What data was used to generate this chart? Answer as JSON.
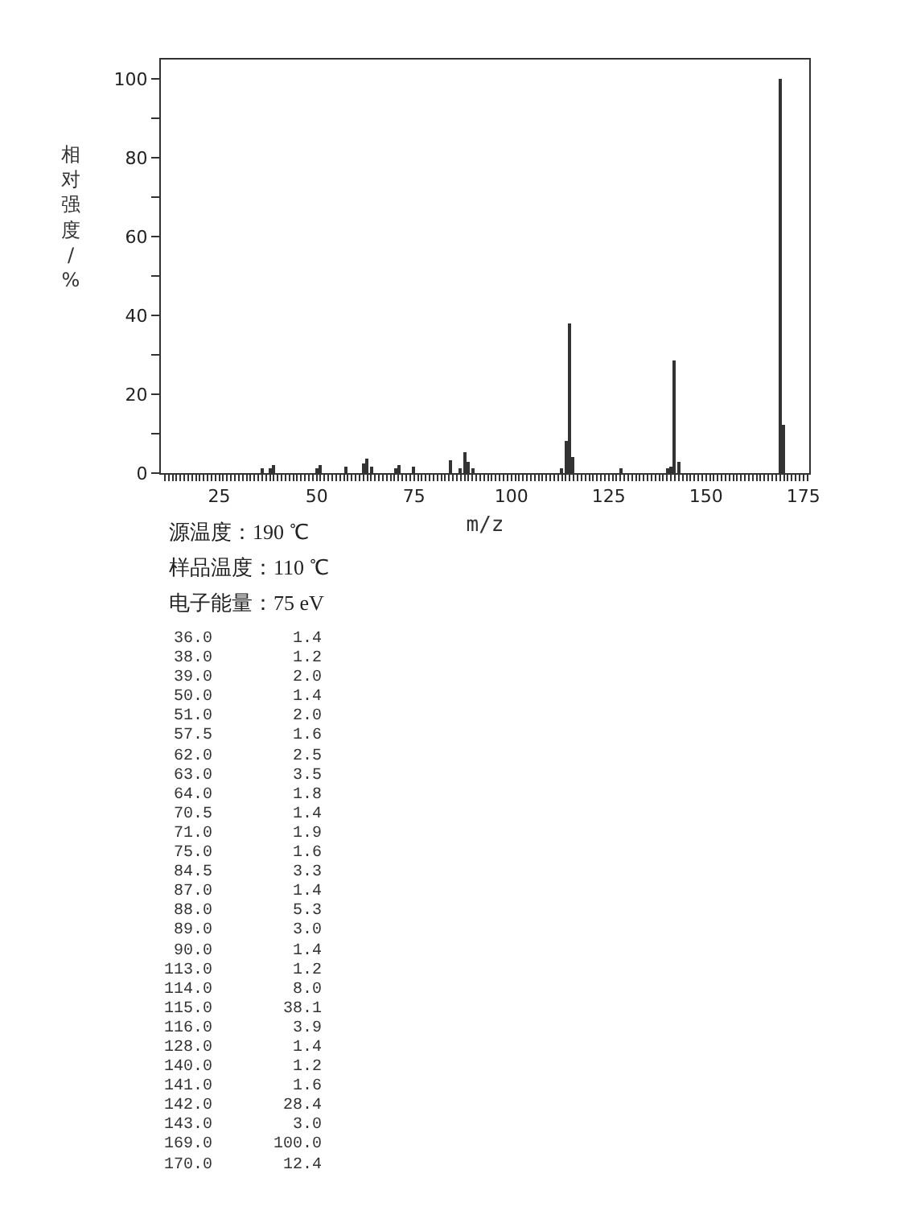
{
  "chart_data": [
    {
      "type": "bar",
      "xlabel": "m/z",
      "ylabel": "相对强度/%",
      "annotations": [
        "源温度：190 ℃",
        "样品温度：110 ℃",
        "电子能量：75 eV"
      ],
      "x": [
        36,
        38,
        39,
        50,
        51,
        57.5,
        62,
        63,
        64,
        70.5,
        71,
        75,
        84.5,
        87,
        88,
        89,
        90,
        113,
        114,
        115,
        116,
        128,
        140,
        141,
        142,
        143,
        169,
        170
      ],
      "series": [
        {
          "color": "#333333",
          "values": [
            1.4,
            1.2,
            2.0,
            1.4,
            2.0,
            1.6,
            2.5,
            3.5,
            1.8,
            1.4,
            1.9,
            1.6,
            3.3,
            1.4,
            5.3,
            3.0,
            1.4,
            1.2,
            8.0,
            38.1,
            3.9,
            1.4,
            1.2,
            1.6,
            28.4,
            3.0,
            100.0,
            12.4
          ]
        }
      ],
      "xlim": [
        10,
        176.5
      ],
      "ylim": [
        0,
        105
      ],
      "xticks": [
        {
          "value": 11,
          "label": null
        },
        {
          "value": 12,
          "label": null
        },
        {
          "value": 13,
          "label": null
        },
        {
          "value": 14,
          "label": null
        },
        {
          "value": 15,
          "label": null
        },
        {
          "value": 16,
          "label": null
        },
        {
          "value": 17,
          "label": null
        },
        {
          "value": 18,
          "label": null
        },
        {
          "value": 19,
          "label": null
        },
        {
          "value": 20,
          "label": null
        },
        {
          "value": 21,
          "label": null
        },
        {
          "value": 22,
          "label": null
        },
        {
          "value": 23,
          "label": null
        },
        {
          "value": 24,
          "label": null
        },
        25,
        {
          "value": 26,
          "label": null
        },
        {
          "value": 27,
          "label": null
        },
        {
          "value": 28,
          "label": null
        },
        {
          "value": 29,
          "label": null
        },
        {
          "value": 30,
          "label": null
        },
        {
          "value": 31,
          "label": null
        },
        {
          "value": 32,
          "label": null
        },
        {
          "value": 33,
          "label": null
        },
        {
          "value": 34,
          "label": null
        },
        {
          "value": 35,
          "label": null
        },
        {
          "value": 36,
          "label": null
        },
        {
          "value": 37,
          "label": null
        },
        {
          "value": 38,
          "label": null
        },
        {
          "value": 39,
          "label": null
        },
        {
          "value": 40,
          "label": null
        },
        {
          "value": 41,
          "label": null
        },
        {
          "value": 42,
          "label": null
        },
        {
          "value": 43,
          "label": null
        },
        {
          "value": 44,
          "label": null
        },
        {
          "value": 45,
          "label": null
        },
        {
          "value": 46,
          "label": null
        },
        {
          "value": 47,
          "label": null
        },
        {
          "value": 48,
          "label": null
        },
        {
          "value": 49,
          "label": null
        },
        50,
        {
          "value": 51,
          "label": null
        },
        {
          "value": 52,
          "label": null
        },
        {
          "value": 53,
          "label": null
        },
        {
          "value": 54,
          "label": null
        },
        {
          "value": 55,
          "label": null
        },
        {
          "value": 56,
          "label": null
        },
        {
          "value": 57,
          "label": null
        },
        {
          "value": 58,
          "label": null
        },
        {
          "value": 59,
          "label": null
        },
        {
          "value": 60,
          "label": null
        },
        {
          "value": 61,
          "label": null
        },
        {
          "value": 62,
          "label": null
        },
        {
          "value": 63,
          "label": null
        },
        {
          "value": 64,
          "label": null
        },
        {
          "value": 65,
          "label": null
        },
        {
          "value": 66,
          "label": null
        },
        {
          "value": 67,
          "label": null
        },
        {
          "value": 68,
          "label": null
        },
        {
          "value": 69,
          "label": null
        },
        {
          "value": 70,
          "label": null
        },
        {
          "value": 71,
          "label": null
        },
        {
          "value": 72,
          "label": null
        },
        {
          "value": 73,
          "label": null
        },
        {
          "value": 74,
          "label": null
        },
        75,
        {
          "value": 76,
          "label": null
        },
        {
          "value": 77,
          "label": null
        },
        {
          "value": 78,
          "label": null
        },
        {
          "value": 79,
          "label": null
        },
        {
          "value": 80,
          "label": null
        },
        {
          "value": 81,
          "label": null
        },
        {
          "value": 82,
          "label": null
        },
        {
          "value": 83,
          "label": null
        },
        {
          "value": 84,
          "label": null
        },
        {
          "value": 85,
          "label": null
        },
        {
          "value": 86,
          "label": null
        },
        {
          "value": 87,
          "label": null
        },
        {
          "value": 88,
          "label": null
        },
        {
          "value": 89,
          "label": null
        },
        {
          "value": 90,
          "label": null
        },
        {
          "value": 91,
          "label": null
        },
        {
          "value": 92,
          "label": null
        },
        {
          "value": 93,
          "label": null
        },
        {
          "value": 94,
          "label": null
        },
        {
          "value": 95,
          "label": null
        },
        {
          "value": 96,
          "label": null
        },
        {
          "value": 97,
          "label": null
        },
        {
          "value": 98,
          "label": null
        },
        {
          "value": 99,
          "label": null
        },
        100,
        {
          "value": 101,
          "label": null
        },
        {
          "value": 102,
          "label": null
        },
        {
          "value": 103,
          "label": null
        },
        {
          "value": 104,
          "label": null
        },
        {
          "value": 105,
          "label": null
        },
        {
          "value": 106,
          "label": null
        },
        {
          "value": 107,
          "label": null
        },
        {
          "value": 108,
          "label": null
        },
        {
          "value": 109,
          "label": null
        },
        {
          "value": 110,
          "label": null
        },
        {
          "value": 111,
          "label": null
        },
        {
          "value": 112,
          "label": null
        },
        {
          "value": 113,
          "label": null
        },
        {
          "value": 114,
          "label": null
        },
        {
          "value": 115,
          "label": null
        },
        {
          "value": 116,
          "label": null
        },
        {
          "value": 117,
          "label": null
        },
        {
          "value": 118,
          "label": null
        },
        {
          "value": 119,
          "label": null
        },
        {
          "value": 120,
          "label": null
        },
        {
          "value": 121,
          "label": null
        },
        {
          "value": 122,
          "label": null
        },
        {
          "value": 123,
          "label": null
        },
        {
          "value": 124,
          "label": null
        },
        125,
        {
          "value": 126,
          "label": null
        },
        {
          "value": 127,
          "label": null
        },
        {
          "value": 128,
          "label": null
        },
        {
          "value": 129,
          "label": null
        },
        {
          "value": 130,
          "label": null
        },
        {
          "value": 131,
          "label": null
        },
        {
          "value": 132,
          "label": null
        },
        {
          "value": 133,
          "label": null
        },
        {
          "value": 134,
          "label": null
        },
        {
          "value": 135,
          "label": null
        },
        {
          "value": 136,
          "label": null
        },
        {
          "value": 137,
          "label": null
        },
        {
          "value": 138,
          "label": null
        },
        {
          "value": 139,
          "label": null
        },
        {
          "value": 140,
          "label": null
        },
        {
          "value": 141,
          "label": null
        },
        {
          "value": 142,
          "label": null
        },
        {
          "value": 143,
          "label": null
        },
        {
          "value": 144,
          "label": null
        },
        {
          "value": 145,
          "label": null
        },
        {
          "value": 146,
          "label": null
        },
        {
          "value": 147,
          "label": null
        },
        {
          "value": 148,
          "label": null
        },
        {
          "value": 149,
          "label": null
        },
        150,
        {
          "value": 151,
          "label": null
        },
        {
          "value": 152,
          "label": null
        },
        {
          "value": 153,
          "label": null
        },
        {
          "value": 154,
          "label": null
        },
        {
          "value": 155,
          "label": null
        },
        {
          "value": 156,
          "label": null
        },
        {
          "value": 157,
          "label": null
        },
        {
          "value": 158,
          "label": null
        },
        {
          "value": 159,
          "label": null
        },
        {
          "value": 160,
          "label": null
        },
        {
          "value": 161,
          "label": null
        },
        {
          "value": 162,
          "label": null
        },
        {
          "value": 163,
          "label": null
        },
        {
          "value": 164,
          "label": null
        },
        {
          "value": 165,
          "label": null
        },
        {
          "value": 166,
          "label": null
        },
        {
          "value": 167,
          "label": null
        },
        {
          "value": 168,
          "label": null
        },
        {
          "value": 169,
          "label": null
        },
        {
          "value": 170,
          "label": null
        },
        {
          "value": 171,
          "label": null
        },
        {
          "value": 172,
          "label": null
        },
        {
          "value": 173,
          "label": null
        },
        {
          "value": 174,
          "label": null
        },
        175,
        {
          "value": 176,
          "label": null
        }
      ],
      "yticks": [
        0,
        {
          "value": 10,
          "label": null
        },
        20,
        {
          "value": 30,
          "label": null
        },
        40,
        {
          "value": 50,
          "label": null
        },
        60,
        {
          "value": 70,
          "label": null
        },
        80,
        {
          "value": 90,
          "label": null
        },
        100
      ]
    },
    {
      "type": "other",
      "annotations": [
        "36.0",
        "1.4",
        "38.0",
        "1.2",
        "39.0",
        "2.0",
        "50.0",
        "1.4",
        "51.0",
        "2.0",
        "57.5",
        "1.6",
        "62.0",
        "2.5",
        "63.0",
        "3.5",
        "64.0",
        "1.8",
        "70.5",
        "1.4",
        "71.0",
        "1.9",
        "75.0",
        "1.6",
        "84.5",
        "3.3",
        "87.0",
        "1.4",
        "88.0",
        "5.3",
        "89.0",
        "3.0",
        "90.0",
        "1.4",
        "113.0",
        "1.2",
        "114.0",
        "8.0",
        "115.0",
        "38.1",
        "116.0",
        "3.9",
        "128.0",
        "1.4",
        "140.0",
        "1.2",
        "141.0",
        "1.6",
        "142.0",
        "28.4",
        "143.0",
        "3.0",
        "169.0",
        "100.0",
        "170.0",
        "12.4"
      ]
    }
  ]
}
